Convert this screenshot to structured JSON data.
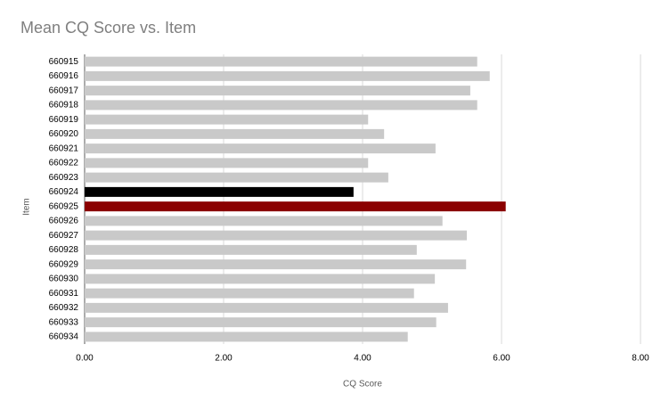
{
  "chart_data": {
    "type": "hbar",
    "title": "Mean CQ Score vs. Item",
    "x_label": "CQ Score",
    "y_label": "Item",
    "categories": [
      "660915",
      "660916",
      "660917",
      "660918",
      "660919",
      "660920",
      "660921",
      "660922",
      "660923",
      "660924",
      "660925",
      "660926",
      "660927",
      "660928",
      "660929",
      "660930",
      "660931",
      "660932",
      "660933",
      "660934"
    ],
    "values": [
      5.65,
      5.83,
      5.55,
      5.65,
      4.08,
      4.31,
      5.05,
      4.08,
      4.37,
      3.87,
      6.06,
      5.15,
      5.5,
      4.78,
      5.49,
      5.04,
      4.74,
      5.23,
      5.06,
      4.65
    ],
    "colors": [
      "#c9c9c9",
      "#c9c9c9",
      "#c9c9c9",
      "#c9c9c9",
      "#c9c9c9",
      "#c9c9c9",
      "#c9c9c9",
      "#c9c9c9",
      "#c9c9c9",
      "#000000",
      "#8b0000",
      "#c9c9c9",
      "#c9c9c9",
      "#c9c9c9",
      "#c9c9c9",
      "#c9c9c9",
      "#c9c9c9",
      "#c9c9c9",
      "#c9c9c9",
      "#c9c9c9"
    ],
    "xlim": [
      0,
      8
    ],
    "xticks": [
      {
        "value": 0,
        "label": "0.00"
      },
      {
        "value": 2,
        "label": "2.00"
      },
      {
        "value": 4,
        "label": "4.00"
      },
      {
        "value": 6,
        "label": "6.00"
      },
      {
        "value": 8,
        "label": "8.00"
      }
    ],
    "grid": true
  }
}
